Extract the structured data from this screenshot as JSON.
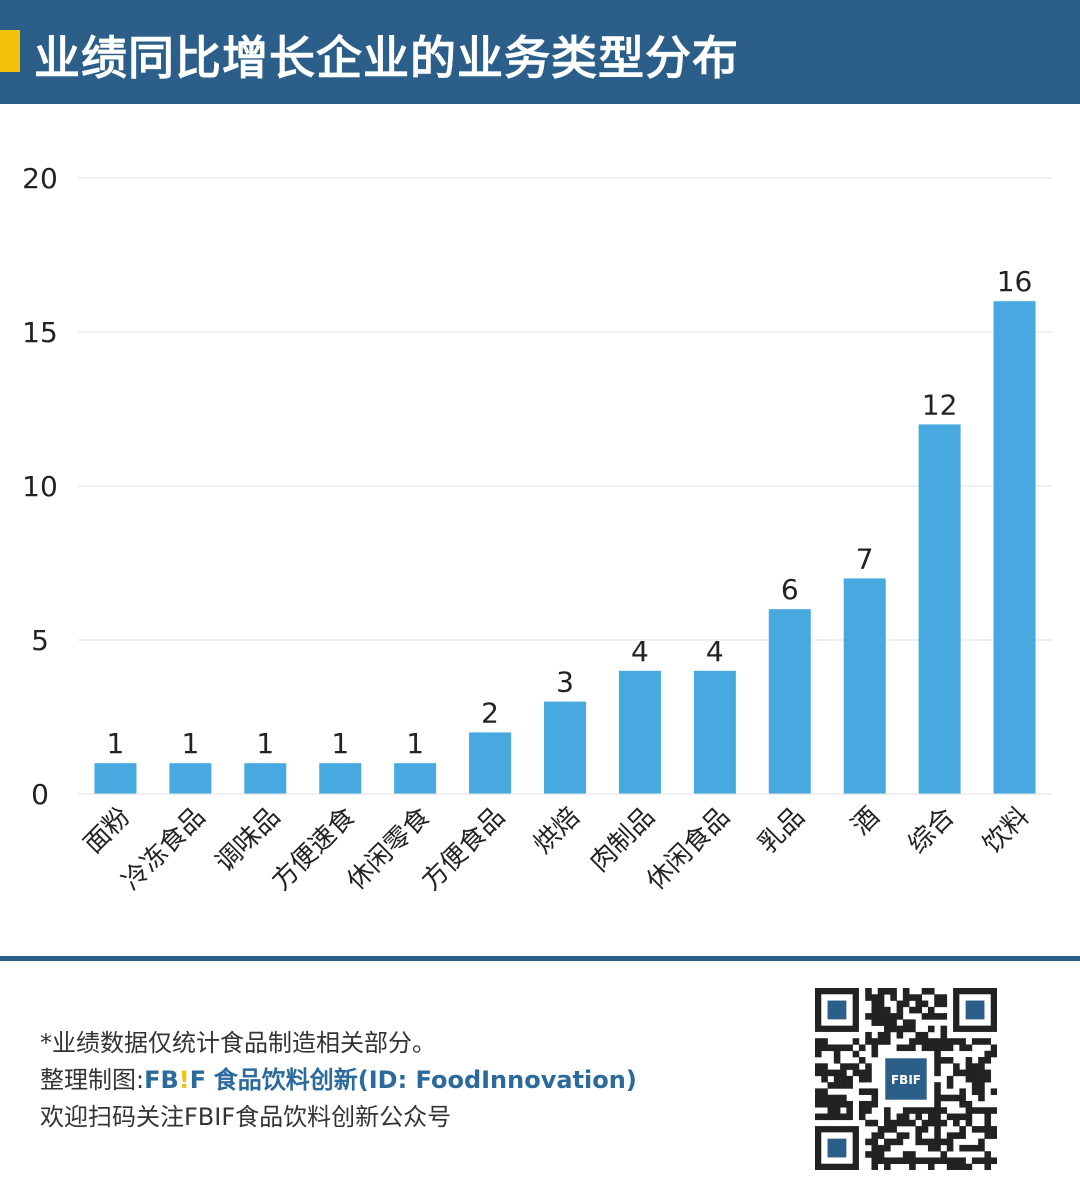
{
  "header": {
    "title": "业绩同比增长企业的业务类型分布"
  },
  "chart_data": {
    "type": "bar",
    "categories": [
      "面粉",
      "冷冻食品",
      "调味品",
      "方便速食",
      "休闲零食",
      "方便食品",
      "烘焙",
      "肉制品",
      "休闲食品",
      "乳品",
      "酒",
      "综合",
      "饮料"
    ],
    "values": [
      1,
      1,
      1,
      1,
      1,
      2,
      3,
      4,
      4,
      6,
      7,
      12,
      16
    ],
    "yticks": [
      0,
      5,
      10,
      15,
      20
    ],
    "ylim": [
      0,
      20
    ],
    "grid": true,
    "bar_color": "#47a9df",
    "title": "",
    "xlabel": "",
    "ylabel": ""
  },
  "footer": {
    "note": "*业绩数据仅统计食品制造相关部分。",
    "credit_prefix": "整理制图:",
    "brand_logo_a": "FB",
    "brand_logo_bang": "!",
    "brand_logo_b": "F",
    "brand_name": "食品饮料创新(ID: FoodInnovation)",
    "follow": "欢迎扫码关注FBIF食品饮料创新公众号",
    "qr_center": "FBIF"
  },
  "colors": {
    "header_bg": "#2b5f8a",
    "accent": "#f4c20d",
    "bar": "#47a9df"
  }
}
